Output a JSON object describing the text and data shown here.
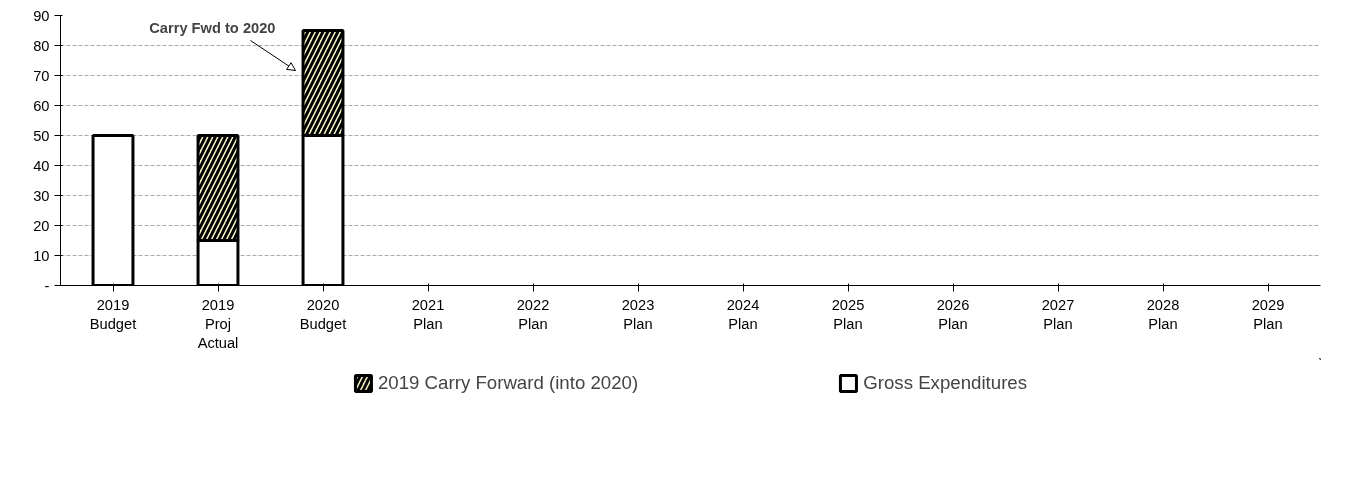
{
  "chart_data": {
    "type": "bar",
    "stacked": true,
    "categories": [
      "2019\nBudget",
      "2019\nProj\nActual",
      "2020\nBudget",
      "2021\nPlan",
      "2022\nPlan",
      "2023\nPlan",
      "2024\nPlan",
      "2025\nPlan",
      "2026\nPlan",
      "2027\nPlan",
      "2028\nPlan",
      "2029\nPlan"
    ],
    "series": [
      {
        "name": "Gross Expenditures",
        "color": "#ffffff",
        "values": [
          50,
          15,
          50,
          null,
          null,
          null,
          null,
          null,
          null,
          null,
          null,
          null
        ]
      },
      {
        "name": "2019 Carry Forward (into 2020)",
        "color": "#ffffcc",
        "values": [
          null,
          35,
          35,
          null,
          null,
          null,
          null,
          null,
          null,
          null,
          null,
          null
        ]
      }
    ],
    "ylim": [
      0,
      90
    ],
    "yticks": [
      {
        "value": 0,
        "label": "-"
      },
      10,
      20,
      30,
      40,
      50,
      60,
      70,
      80,
      90
    ],
    "grid": "y",
    "legend": "bottom",
    "annotations": [
      "Carry Fwd to 2020"
    ]
  }
}
